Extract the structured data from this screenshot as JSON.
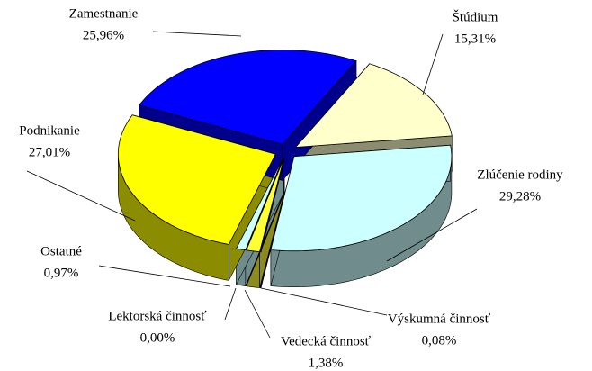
{
  "chart_data": {
    "type": "pie3d",
    "categories": [
      "Štúdium",
      "Zlúčenie rodiny",
      "Výskumná činnosť",
      "Vedecká činnosť",
      "Lektorská činnosť",
      "Ostatné",
      "Podnikanie",
      "Zamestnanie"
    ],
    "values": [
      15.31,
      29.28,
      0.08,
      1.38,
      0.0,
      0.97,
      27.01,
      25.96
    ],
    "value_labels": [
      "15,31%",
      "29,28%",
      "0,08%",
      "1,38%",
      "0,00%",
      "0,97%",
      "27,01%",
      "25,96%"
    ],
    "colors": [
      "#ffffcc",
      "#ccffff",
      "#660066",
      "#ffff33",
      "#ccffff",
      "#ccffff",
      "#ffff00",
      "#0000ff"
    ]
  }
}
